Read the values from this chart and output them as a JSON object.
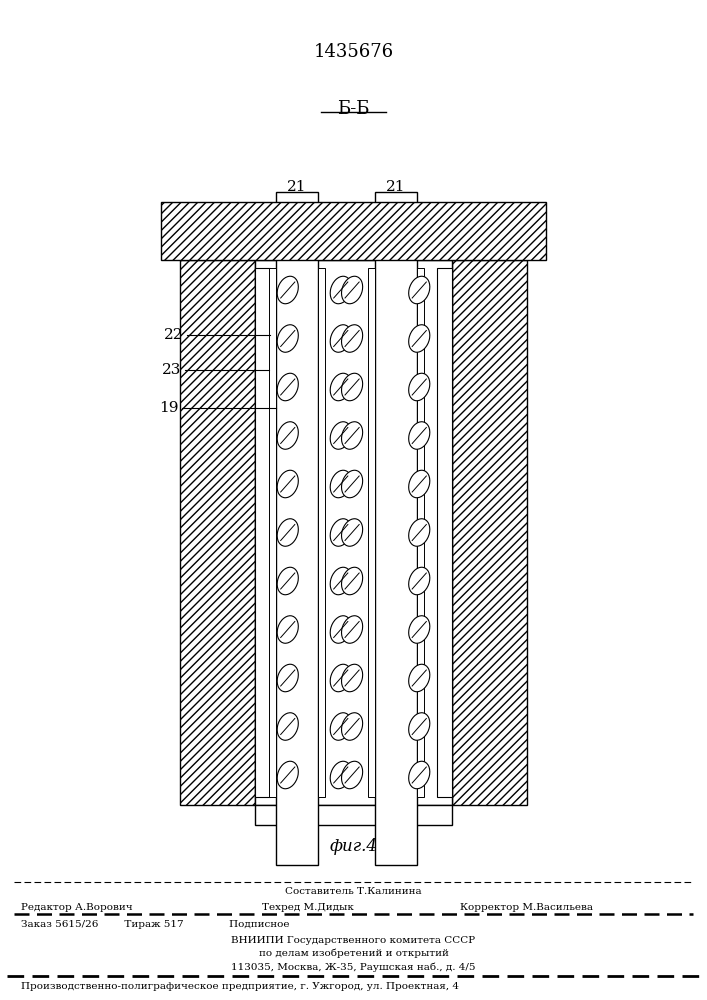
{
  "patent_number": "1435676",
  "section_label": "Б-Б",
  "fig_label": "фиг.4",
  "footer_line1": "Составитель Т.Калинина",
  "footer_line2_left": "Редактор А.Ворович",
  "footer_line2_mid": "Техред М.Дидык",
  "footer_line2_right": "Корректор М.Васильева",
  "footer_line3": "Заказ 5615/26        Тираж 517              Подписное",
  "footer_line4": "ВНИИПИ Государственного комитета СССР",
  "footer_line5": "по делам изобретений и открытий",
  "footer_line6": "113035, Москва, Ж-35, Раушская наб., д. 4/5",
  "footer_bottom": "Производственно-полиграфическое предприятие, г. Ужгород, ул. Проектная, 4",
  "bg_color": "#ffffff"
}
